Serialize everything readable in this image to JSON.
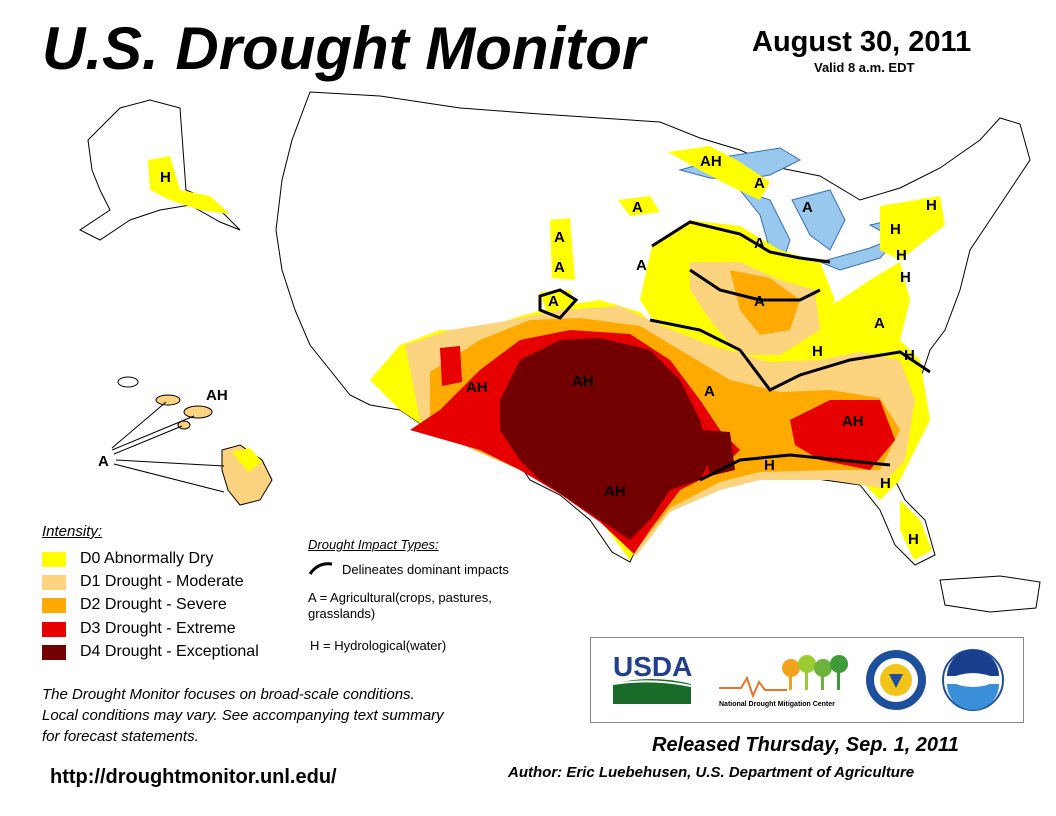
{
  "title": "U.S. Drought Monitor",
  "date": "August 30, 2011",
  "valid": "Valid 8 a.m. EDT",
  "legend": {
    "heading": "Intensity:",
    "items": [
      {
        "code": "D0",
        "label": "D0 Abnormally Dry",
        "color": "#FFFF00"
      },
      {
        "code": "D1",
        "label": "D1 Drought - Moderate",
        "color": "#FCD37F"
      },
      {
        "code": "D2",
        "label": "D2 Drought - Severe",
        "color": "#FFAA00"
      },
      {
        "code": "D3",
        "label": "D3 Drought - Extreme",
        "color": "#E60000"
      },
      {
        "code": "D4",
        "label": "D4 Drought - Exceptional",
        "color": "#730000"
      }
    ]
  },
  "impacts": {
    "heading": "Drought Impact Types:",
    "delineates": "Delineates dominant impacts",
    "agricultural_line1": "A = Agricultural(crops, pastures,",
    "agricultural_line2": "grasslands)",
    "hydrological": "H = Hydrological(water)"
  },
  "note": {
    "line1": "The Drought Monitor focuses on broad-scale conditions.",
    "line2": "Local conditions may vary. See accompanying text summary",
    "line3": "for forecast statements."
  },
  "url": "http://droughtmonitor.unl.edu/",
  "released": "Released Thursday, Sep. 1, 2011",
  "author": "Author: Eric Luebehusen, U.S. Department of Agriculture",
  "logos": {
    "usda": "USDA",
    "ndmc": "National Drought Mitigation Center",
    "icons": [
      "usda-logo",
      "ndmc-logo",
      "commerce-seal-logo",
      "noaa-logo"
    ]
  },
  "map_labels": [
    {
      "name": "label-alaska",
      "text": "H"
    },
    {
      "name": "label-hawaii",
      "text": "AH"
    },
    {
      "name": "label-hawaii-a",
      "text": "A"
    },
    {
      "name": "label-great-lakes-ah",
      "text": "AH"
    },
    {
      "name": "label-michigan-a",
      "text": "A"
    },
    {
      "name": "label-wisconsin-a",
      "text": "A"
    },
    {
      "name": "label-nd-a",
      "text": "A"
    },
    {
      "name": "label-ne-h1",
      "text": "H"
    },
    {
      "name": "label-ne-h2",
      "text": "H"
    },
    {
      "name": "label-ny-h",
      "text": "H"
    },
    {
      "name": "label-sd-a1",
      "text": "A"
    },
    {
      "name": "label-sd-a2",
      "text": "A"
    },
    {
      "name": "label-ne-a",
      "text": "A"
    },
    {
      "name": "label-lake-a",
      "text": "A"
    },
    {
      "name": "label-mid-a",
      "text": "A"
    },
    {
      "name": "label-pa-h",
      "text": "H"
    },
    {
      "name": "label-va-a",
      "text": "A"
    },
    {
      "name": "label-oh-a",
      "text": "A"
    },
    {
      "name": "label-nc-h",
      "text": "H"
    },
    {
      "name": "label-nm-ah",
      "text": "AH"
    },
    {
      "name": "label-ok-ah",
      "text": "AH"
    },
    {
      "name": "label-ar-a",
      "text": "A"
    },
    {
      "name": "label-ga-ah",
      "text": "AH"
    },
    {
      "name": "label-ms-h",
      "text": "H"
    },
    {
      "name": "label-al-h",
      "text": "H"
    },
    {
      "name": "label-tx-ah",
      "text": "AH"
    },
    {
      "name": "label-fl-h1",
      "text": "H"
    },
    {
      "name": "label-fl-h2",
      "text": "H"
    }
  ]
}
